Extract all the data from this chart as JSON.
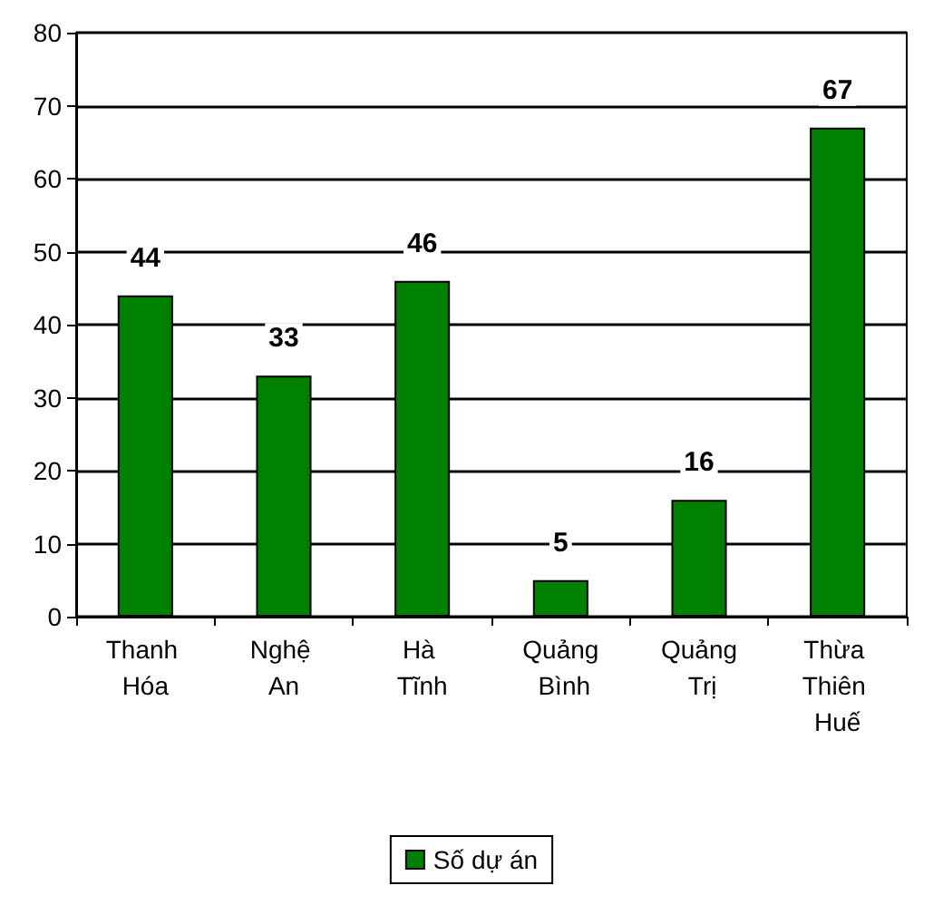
{
  "chart_data": {
    "type": "bar",
    "categories": [
      "Thanh Hóa",
      "Nghệ An",
      "Hà Tĩnh",
      "Quảng Bình",
      "Quảng Trị",
      "Thừa Thiên Huế"
    ],
    "series": [
      {
        "name": "Số dự án",
        "color": "#008000",
        "values": [
          44,
          33,
          46,
          5,
          16,
          67
        ]
      }
    ],
    "ylim": [
      0,
      80
    ],
    "yticks": [
      0,
      10,
      20,
      30,
      40,
      50,
      60,
      70,
      80
    ],
    "grid": "y",
    "legend": "bottom",
    "data_labels": true
  }
}
